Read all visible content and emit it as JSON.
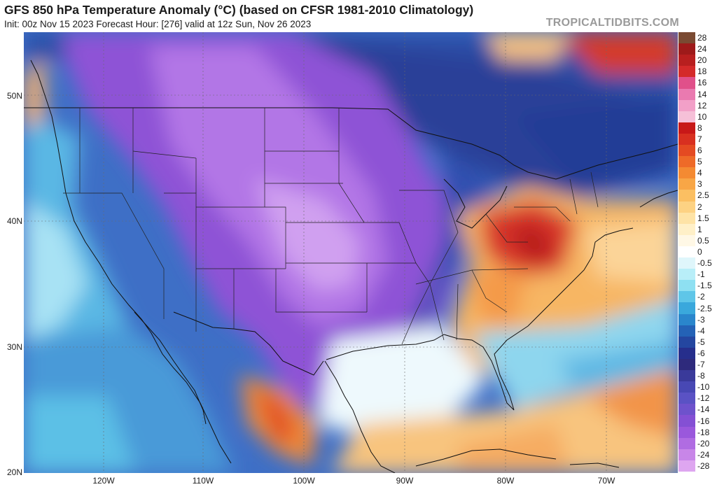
{
  "header": {
    "title": "GFS 850 hPa Temperature Anomaly (°C) (based on CFSR 1981-2010 Climatology)",
    "subtitle": "Init: 00z Nov 15 2023   Forecast Hour: [276]   valid at 12z Sun, Nov 26 2023",
    "watermark": "TROPICALTIDBITS.COM"
  },
  "map": {
    "lat_labels": [
      "50N",
      "40N",
      "30N",
      "20N"
    ],
    "lon_labels": [
      "120W",
      "110W",
      "100W",
      "90W",
      "80W",
      "70W"
    ]
  },
  "colorbar": {
    "labels": [
      "28",
      "24",
      "20",
      "18",
      "16",
      "14",
      "12",
      "10",
      "8",
      "7",
      "6",
      "5",
      "4",
      "3",
      "2.5",
      "2",
      "1.5",
      "1",
      "0.5",
      "0",
      "-0.5",
      "-1",
      "-1.5",
      "-2",
      "-2.5",
      "-3",
      "-4",
      "-5",
      "-6",
      "-7",
      "-8",
      "-10",
      "-12",
      "-14",
      "-16",
      "-18",
      "-20",
      "-24",
      "-28"
    ],
    "colors": [
      "#7a4a32",
      "#9e1a1a",
      "#b81f1f",
      "#d42a2a",
      "#e0508a",
      "#ea7ab0",
      "#f2a0c8",
      "#f6c0d8",
      "#c81818",
      "#d83020",
      "#e44a22",
      "#ee6a28",
      "#f48a32",
      "#f8a646",
      "#fbbf62",
      "#fdd283",
      "#fee3a6",
      "#fff0c8",
      "#fff8e6",
      "#ffffff",
      "#dff6fb",
      "#b8eef8",
      "#8ee0f2",
      "#5fc6e8",
      "#3aa8dc",
      "#2a86cc",
      "#2462b6",
      "#2446a0",
      "#262e8c",
      "#2e2a7c",
      "#3a3a9a",
      "#4848b4",
      "#5a52c4",
      "#6e52cc",
      "#8450d4",
      "#9a58dc",
      "#b06ce2",
      "#c886e8",
      "#dea6f0"
    ]
  }
}
